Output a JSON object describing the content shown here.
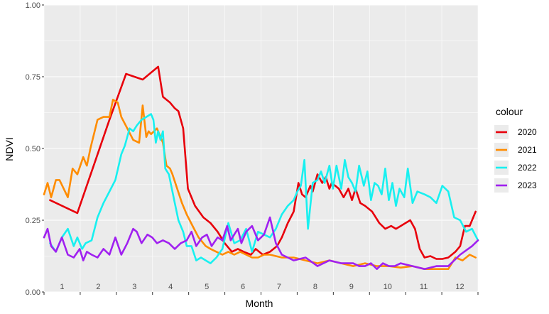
{
  "chart_data": {
    "type": "line",
    "xlabel": "Month",
    "ylabel": "NDVI",
    "ylim": [
      0,
      1
    ],
    "xlim": [
      0,
      365
    ],
    "y_ticks": [
      "0.00",
      "0.25",
      "0.50",
      "0.75",
      "1.00"
    ],
    "x_tick_labels": [
      "1",
      "2",
      "3",
      "4",
      "5",
      "6",
      "7",
      "8",
      "9",
      "10",
      "11",
      "12"
    ],
    "legend_title": "colour",
    "legend_position": "right",
    "grid": true,
    "series": [
      {
        "name": "2020",
        "color": "#e8000b",
        "x": [
          5,
          28,
          55,
          69,
          83,
          96,
          100,
          106,
          110,
          113,
          117,
          121,
          127,
          134,
          140,
          146,
          152,
          158,
          163,
          168,
          174,
          178,
          184,
          190,
          196,
          200,
          205,
          210,
          214,
          217,
          220,
          222,
          224,
          226,
          230,
          234,
          237,
          240,
          242,
          245,
          248,
          252,
          256,
          259,
          262,
          266,
          270,
          276,
          282,
          287,
          292,
          296,
          300,
          304,
          308,
          312,
          316,
          320,
          325,
          330,
          335,
          340,
          346,
          350,
          354,
          358,
          363
        ],
        "y": [
          0.32,
          0.275,
          0.6,
          0.76,
          0.74,
          0.785,
          0.68,
          0.66,
          0.64,
          0.63,
          0.57,
          0.36,
          0.3,
          0.26,
          0.24,
          0.21,
          0.17,
          0.14,
          0.15,
          0.14,
          0.13,
          0.15,
          0.13,
          0.14,
          0.16,
          0.19,
          0.24,
          0.28,
          0.38,
          0.34,
          0.33,
          0.35,
          0.37,
          0.35,
          0.41,
          0.38,
          0.4,
          0.36,
          0.38,
          0.37,
          0.36,
          0.33,
          0.36,
          0.32,
          0.36,
          0.31,
          0.3,
          0.28,
          0.24,
          0.22,
          0.23,
          0.22,
          0.23,
          0.24,
          0.25,
          0.22,
          0.15,
          0.12,
          0.125,
          0.115,
          0.115,
          0.12,
          0.14,
          0.16,
          0.23,
          0.23,
          0.28
        ]
      },
      {
        "name": "2021",
        "color": "#ff8c00",
        "x": [
          0,
          3,
          6,
          8,
          10,
          13,
          20,
          24,
          28,
          33,
          36,
          39,
          45,
          50,
          55,
          58,
          62,
          65,
          70,
          75,
          80,
          83,
          86,
          88,
          90,
          95,
          100,
          103,
          106,
          108,
          112,
          116,
          120,
          125,
          130,
          136,
          140,
          145,
          150,
          155,
          160,
          165,
          170,
          175,
          180,
          185,
          190,
          200,
          210,
          220,
          230,
          240,
          250,
          260,
          270,
          280,
          290,
          300,
          310,
          320,
          330,
          340,
          346,
          352,
          358,
          363
        ],
        "y": [
          0.34,
          0.38,
          0.33,
          0.36,
          0.39,
          0.39,
          0.33,
          0.43,
          0.41,
          0.47,
          0.44,
          0.5,
          0.6,
          0.61,
          0.61,
          0.67,
          0.66,
          0.61,
          0.57,
          0.53,
          0.52,
          0.65,
          0.54,
          0.56,
          0.55,
          0.57,
          0.52,
          0.44,
          0.43,
          0.41,
          0.36,
          0.31,
          0.27,
          0.23,
          0.19,
          0.16,
          0.15,
          0.14,
          0.13,
          0.14,
          0.13,
          0.14,
          0.13,
          0.12,
          0.12,
          0.13,
          0.13,
          0.12,
          0.12,
          0.11,
          0.1,
          0.11,
          0.1,
          0.09,
          0.1,
          0.09,
          0.09,
          0.085,
          0.09,
          0.08,
          0.08,
          0.08,
          0.12,
          0.11,
          0.13,
          0.12
        ]
      },
      {
        "name": "2022",
        "color": "#18f0f0",
        "x": [
          5,
          10,
          15,
          20,
          25,
          28,
          32,
          35,
          40,
          45,
          50,
          55,
          60,
          65,
          68,
          72,
          75,
          78,
          82,
          86,
          90,
          92,
          94,
          96,
          98,
          100,
          102,
          105,
          107,
          110,
          113,
          117,
          120,
          124,
          128,
          132,
          136,
          140,
          145,
          150,
          155,
          160,
          165,
          170,
          175,
          180,
          185,
          190,
          195,
          200,
          205,
          210,
          213,
          216,
          219,
          222,
          226,
          230,
          233,
          236,
          240,
          243,
          246,
          250,
          253,
          256,
          259,
          262,
          265,
          269,
          272,
          275,
          278,
          281,
          284,
          287,
          290,
          293,
          296,
          299,
          303,
          306,
          310,
          314,
          320,
          325,
          330,
          335,
          340,
          345,
          350,
          355,
          360,
          365
        ],
        "y": [
          0.17,
          0.14,
          0.19,
          0.22,
          0.16,
          0.19,
          0.15,
          0.17,
          0.18,
          0.26,
          0.31,
          0.35,
          0.39,
          0.48,
          0.51,
          0.57,
          0.56,
          0.58,
          0.6,
          0.61,
          0.62,
          0.6,
          0.52,
          0.56,
          0.53,
          0.56,
          0.43,
          0.41,
          0.37,
          0.31,
          0.25,
          0.21,
          0.16,
          0.16,
          0.11,
          0.12,
          0.11,
          0.1,
          0.12,
          0.15,
          0.24,
          0.17,
          0.18,
          0.22,
          0.14,
          0.21,
          0.2,
          0.19,
          0.22,
          0.27,
          0.3,
          0.32,
          0.35,
          0.37,
          0.46,
          0.22,
          0.38,
          0.39,
          0.42,
          0.38,
          0.44,
          0.36,
          0.44,
          0.36,
          0.46,
          0.4,
          0.38,
          0.35,
          0.44,
          0.37,
          0.42,
          0.32,
          0.38,
          0.37,
          0.34,
          0.43,
          0.32,
          0.38,
          0.3,
          0.36,
          0.33,
          0.43,
          0.31,
          0.35,
          0.34,
          0.33,
          0.31,
          0.37,
          0.35,
          0.26,
          0.25,
          0.21,
          0.22,
          0.18
        ]
      },
      {
        "name": "2023",
        "color": "#a020f0",
        "x": [
          0,
          3,
          6,
          10,
          15,
          20,
          25,
          30,
          33,
          36,
          40,
          45,
          50,
          55,
          60,
          65,
          70,
          75,
          78,
          82,
          87,
          91,
          95,
          100,
          105,
          110,
          115,
          120,
          124,
          128,
          133,
          137,
          141,
          146,
          150,
          154,
          157,
          160,
          163,
          166,
          170,
          175,
          180,
          185,
          190,
          195,
          200,
          205,
          210,
          220,
          230,
          240,
          250,
          260,
          265,
          270,
          275,
          280,
          285,
          290,
          295,
          300,
          310,
          320,
          330,
          340,
          350,
          360,
          365
        ],
        "y": [
          0.19,
          0.22,
          0.16,
          0.14,
          0.19,
          0.13,
          0.12,
          0.15,
          0.11,
          0.14,
          0.13,
          0.12,
          0.15,
          0.13,
          0.19,
          0.13,
          0.17,
          0.22,
          0.21,
          0.17,
          0.2,
          0.19,
          0.17,
          0.18,
          0.17,
          0.15,
          0.17,
          0.18,
          0.21,
          0.16,
          0.19,
          0.2,
          0.16,
          0.19,
          0.18,
          0.23,
          0.18,
          0.2,
          0.22,
          0.17,
          0.21,
          0.23,
          0.18,
          0.2,
          0.26,
          0.17,
          0.13,
          0.12,
          0.11,
          0.12,
          0.09,
          0.11,
          0.1,
          0.1,
          0.09,
          0.09,
          0.1,
          0.08,
          0.1,
          0.09,
          0.09,
          0.1,
          0.09,
          0.08,
          0.09,
          0.09,
          0.13,
          0.16,
          0.18
        ]
      }
    ]
  }
}
